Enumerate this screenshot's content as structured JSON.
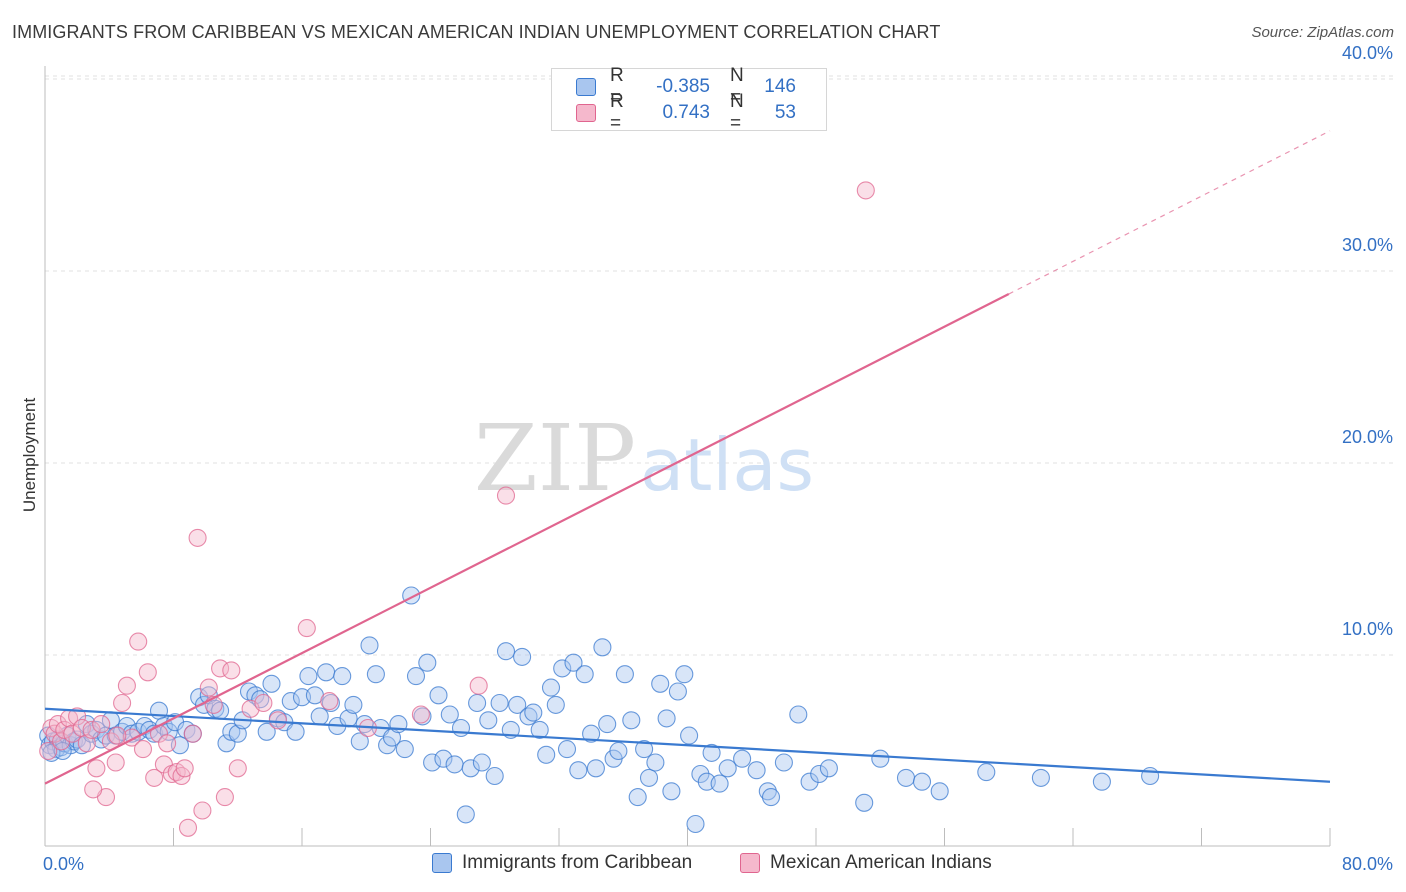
{
  "header": {
    "title": "IMMIGRANTS FROM CARIBBEAN VS MEXICAN AMERICAN INDIAN UNEMPLOYMENT CORRELATION CHART",
    "source": "Source: ZipAtlas.com"
  },
  "watermark": {
    "part1": "ZIP",
    "part2": "atlas"
  },
  "colors": {
    "blue": "#3a7ad0",
    "blue_fill": "#a9c6ef",
    "pink": "#e0658f",
    "pink_fill": "#f5b8cc",
    "value_text": "#3370c4",
    "grid": "#e0e0e0"
  },
  "legend": {
    "rows": [
      {
        "r_label": "R =",
        "r_value": "-0.385",
        "n_label": "N =",
        "n_value": "146"
      },
      {
        "r_label": "R =",
        "r_value": "0.743",
        "n_label": "N =",
        "n_value": "53"
      }
    ]
  },
  "bottom_legend": {
    "series1": "Immigrants from Caribbean",
    "series2": "Mexican American Indians"
  },
  "chart_data": {
    "type": "scatter",
    "title": "IMMIGRANTS FROM CARIBBEAN VS MEXICAN AMERICAN INDIAN UNEMPLOYMENT CORRELATION CHART",
    "xlabel": "",
    "ylabel": "Unemployment",
    "xlim": [
      0,
      80
    ],
    "ylim": [
      0,
      42
    ],
    "x_tick_labels": [
      "0.0%",
      "80.0%"
    ],
    "y_ticks": [
      10,
      20,
      30,
      40
    ],
    "y_tick_labels": [
      "10.0%",
      "20.0%",
      "30.0%",
      "40.0%"
    ],
    "grid": true,
    "series": [
      {
        "name": "Immigrants from Caribbean",
        "r": -0.385,
        "n": 146,
        "trend": {
          "x0": 0,
          "y0": 7.2,
          "x1": 80,
          "y1": 3.4
        },
        "points": [
          [
            0.2,
            5.8
          ],
          [
            0.3,
            5.3
          ],
          [
            0.5,
            5.5
          ],
          [
            0.7,
            5.1
          ],
          [
            0.8,
            5.6
          ],
          [
            1.0,
            5.2
          ],
          [
            1.2,
            5.4
          ],
          [
            1.4,
            5.8
          ],
          [
            1.6,
            5.3
          ],
          [
            1.8,
            5.5
          ],
          [
            2.0,
            5.6
          ],
          [
            2.3,
            5.3
          ],
          [
            2.6,
            6.4
          ],
          [
            2.9,
            5.9
          ],
          [
            3.2,
            6.1
          ],
          [
            3.5,
            5.6
          ],
          [
            3.8,
            5.8
          ],
          [
            4.1,
            6.6
          ],
          [
            4.4,
            5.8
          ],
          [
            4.8,
            6.0
          ],
          [
            5.1,
            6.3
          ],
          [
            5.4,
            5.9
          ],
          [
            5.8,
            6.0
          ],
          [
            6.2,
            6.3
          ],
          [
            6.5,
            6.1
          ],
          [
            6.8,
            5.9
          ],
          [
            7.1,
            7.1
          ],
          [
            7.4,
            6.3
          ],
          [
            7.7,
            6.0
          ],
          [
            8.1,
            6.5
          ],
          [
            8.4,
            5.3
          ],
          [
            8.8,
            6.1
          ],
          [
            9.2,
            5.9
          ],
          [
            9.6,
            7.8
          ],
          [
            9.9,
            7.4
          ],
          [
            10.2,
            7.9
          ],
          [
            10.6,
            7.2
          ],
          [
            10.9,
            7.1
          ],
          [
            11.3,
            5.4
          ],
          [
            11.6,
            6.0
          ],
          [
            12.0,
            5.9
          ],
          [
            12.3,
            6.6
          ],
          [
            12.7,
            8.1
          ],
          [
            13.1,
            7.9
          ],
          [
            13.4,
            7.7
          ],
          [
            13.8,
            6.0
          ],
          [
            14.1,
            8.5
          ],
          [
            14.5,
            6.7
          ],
          [
            14.9,
            6.5
          ],
          [
            15.3,
            7.6
          ],
          [
            15.6,
            6.0
          ],
          [
            16.0,
            7.8
          ],
          [
            16.4,
            8.9
          ],
          [
            16.8,
            7.9
          ],
          [
            17.1,
            6.8
          ],
          [
            17.5,
            9.1
          ],
          [
            17.8,
            7.5
          ],
          [
            18.2,
            6.3
          ],
          [
            18.5,
            8.9
          ],
          [
            18.9,
            6.7
          ],
          [
            19.2,
            7.4
          ],
          [
            19.6,
            5.5
          ],
          [
            19.9,
            6.4
          ],
          [
            20.2,
            10.5
          ],
          [
            20.6,
            9.0
          ],
          [
            20.9,
            6.2
          ],
          [
            21.3,
            5.3
          ],
          [
            21.6,
            5.7
          ],
          [
            22.0,
            6.4
          ],
          [
            22.4,
            5.1
          ],
          [
            22.8,
            13.1
          ],
          [
            23.1,
            8.9
          ],
          [
            23.5,
            6.8
          ],
          [
            23.8,
            9.6
          ],
          [
            24.1,
            4.4
          ],
          [
            24.5,
            7.9
          ],
          [
            24.8,
            4.6
          ],
          [
            25.2,
            6.9
          ],
          [
            25.5,
            4.3
          ],
          [
            25.9,
            6.2
          ],
          [
            26.2,
            1.7
          ],
          [
            26.5,
            4.1
          ],
          [
            26.9,
            7.5
          ],
          [
            27.2,
            4.4
          ],
          [
            27.6,
            6.6
          ],
          [
            28.0,
            3.7
          ],
          [
            28.3,
            7.5
          ],
          [
            28.7,
            10.2
          ],
          [
            29.0,
            6.1
          ],
          [
            29.4,
            7.4
          ],
          [
            29.7,
            9.9
          ],
          [
            30.1,
            6.8
          ],
          [
            30.4,
            7.0
          ],
          [
            30.8,
            6.1
          ],
          [
            31.2,
            4.8
          ],
          [
            31.5,
            8.3
          ],
          [
            31.8,
            7.4
          ],
          [
            32.2,
            9.3
          ],
          [
            32.5,
            5.1
          ],
          [
            32.9,
            9.6
          ],
          [
            33.2,
            4.0
          ],
          [
            33.6,
            9.0
          ],
          [
            34.0,
            5.9
          ],
          [
            34.3,
            4.1
          ],
          [
            34.7,
            10.4
          ],
          [
            35.0,
            6.4
          ],
          [
            35.4,
            4.6
          ],
          [
            35.7,
            5.0
          ],
          [
            36.1,
            9.0
          ],
          [
            36.5,
            6.6
          ],
          [
            36.9,
            2.6
          ],
          [
            37.3,
            5.1
          ],
          [
            37.6,
            3.6
          ],
          [
            38.0,
            4.4
          ],
          [
            38.3,
            8.5
          ],
          [
            38.7,
            6.7
          ],
          [
            39.0,
            2.9
          ],
          [
            39.4,
            8.1
          ],
          [
            39.8,
            9.0
          ],
          [
            40.1,
            5.8
          ],
          [
            40.5,
            1.2
          ],
          [
            40.8,
            3.8
          ],
          [
            41.2,
            3.4
          ],
          [
            41.5,
            4.9
          ],
          [
            42.0,
            3.3
          ],
          [
            42.5,
            4.1
          ],
          [
            43.4,
            4.6
          ],
          [
            44.3,
            4.0
          ],
          [
            45.0,
            2.9
          ],
          [
            45.2,
            2.6
          ],
          [
            46.0,
            4.4
          ],
          [
            46.9,
            6.9
          ],
          [
            47.6,
            3.4
          ],
          [
            48.2,
            3.8
          ],
          [
            48.8,
            4.1
          ],
          [
            51.0,
            2.3
          ],
          [
            52.0,
            4.6
          ],
          [
            53.6,
            3.6
          ],
          [
            54.6,
            3.4
          ],
          [
            55.7,
            2.9
          ],
          [
            58.6,
            3.9
          ],
          [
            62.0,
            3.6
          ],
          [
            65.8,
            3.4
          ],
          [
            68.8,
            3.7
          ],
          [
            0.4,
            4.9
          ],
          [
            1.1,
            5.0
          ]
        ]
      },
      {
        "name": "Mexican American Indians",
        "r": 0.743,
        "n": 53,
        "trend": {
          "x0": 0,
          "y0": 3.3,
          "x1": 60,
          "y1": 28.8
        },
        "trend_dashed": {
          "x0": 60,
          "y0": 28.8,
          "x1": 80,
          "y1": 37.3
        },
        "points": [
          [
            0.2,
            5.0
          ],
          [
            0.4,
            6.2
          ],
          [
            0.6,
            5.9
          ],
          [
            0.8,
            6.4
          ],
          [
            1.0,
            5.5
          ],
          [
            1.2,
            6.1
          ],
          [
            1.5,
            6.7
          ],
          [
            1.7,
            5.9
          ],
          [
            2.0,
            6.8
          ],
          [
            2.3,
            6.2
          ],
          [
            2.6,
            5.4
          ],
          [
            2.9,
            6.1
          ],
          [
            3.2,
            4.1
          ],
          [
            3.5,
            6.4
          ],
          [
            3.8,
            2.6
          ],
          [
            4.1,
            5.5
          ],
          [
            4.4,
            4.4
          ],
          [
            4.8,
            7.5
          ],
          [
            5.1,
            8.4
          ],
          [
            5.4,
            5.7
          ],
          [
            5.8,
            10.7
          ],
          [
            6.1,
            5.1
          ],
          [
            6.4,
            9.1
          ],
          [
            6.8,
            3.6
          ],
          [
            7.1,
            5.9
          ],
          [
            7.4,
            4.3
          ],
          [
            7.6,
            5.4
          ],
          [
            7.9,
            3.8
          ],
          [
            8.2,
            3.9
          ],
          [
            8.5,
            3.7
          ],
          [
            8.9,
            1.0
          ],
          [
            9.2,
            5.9
          ],
          [
            9.5,
            16.1
          ],
          [
            9.8,
            1.9
          ],
          [
            10.2,
            8.3
          ],
          [
            10.5,
            7.4
          ],
          [
            10.9,
            9.3
          ],
          [
            11.2,
            2.6
          ],
          [
            11.6,
            9.2
          ],
          [
            12.0,
            4.1
          ],
          [
            12.8,
            7.2
          ],
          [
            13.6,
            7.5
          ],
          [
            14.5,
            6.6
          ],
          [
            16.3,
            11.4
          ],
          [
            17.7,
            7.6
          ],
          [
            20.1,
            6.2
          ],
          [
            23.4,
            6.9
          ],
          [
            27.0,
            8.4
          ],
          [
            28.7,
            18.3
          ],
          [
            51.1,
            34.2
          ],
          [
            3.0,
            3.0
          ],
          [
            4.5,
            5.8
          ],
          [
            8.7,
            4.1
          ]
        ]
      }
    ]
  }
}
